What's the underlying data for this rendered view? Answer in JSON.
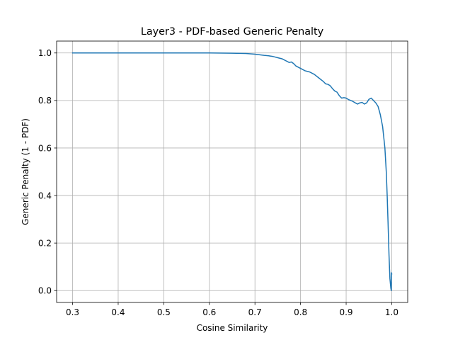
{
  "chart_data": {
    "type": "line",
    "title": "Layer3 - PDF-based Generic Penalty",
    "xlabel": "Cosine Similarity",
    "ylabel": "Generic Penalty (1 - PDF)",
    "xlim": [
      0.265,
      1.035
    ],
    "ylim": [
      -0.05,
      1.05
    ],
    "xticks": [
      0.3,
      0.4,
      0.5,
      0.6,
      0.7,
      0.8,
      0.9,
      1.0
    ],
    "xtick_labels": [
      "0.3",
      "0.4",
      "0.5",
      "0.6",
      "0.7",
      "0.8",
      "0.9",
      "1.0"
    ],
    "yticks": [
      0.0,
      0.2,
      0.4,
      0.6,
      0.8,
      1.0
    ],
    "ytick_labels": [
      "0.0",
      "0.2",
      "0.4",
      "0.6",
      "0.8",
      "1.0"
    ],
    "grid": true,
    "line_color": "#1f77b4",
    "series": [
      {
        "x": [
          0.3,
          0.4,
          0.5,
          0.6,
          0.65,
          0.68,
          0.7,
          0.72,
          0.73,
          0.74,
          0.75,
          0.76,
          0.77,
          0.775,
          0.78,
          0.785,
          0.79,
          0.8,
          0.81,
          0.82,
          0.83,
          0.84,
          0.85,
          0.855,
          0.86,
          0.865,
          0.87,
          0.875,
          0.88,
          0.885,
          0.89,
          0.895,
          0.9,
          0.905,
          0.91,
          0.915,
          0.92,
          0.925,
          0.93,
          0.935,
          0.94,
          0.945,
          0.95,
          0.955,
          0.96,
          0.965,
          0.97,
          0.975,
          0.98,
          0.985,
          0.988,
          0.99,
          0.992,
          0.994,
          0.996,
          0.998,
          0.999,
          0.9995,
          1.0
        ],
        "y": [
          1.0,
          1.0,
          1.0,
          1.0,
          0.999,
          0.998,
          0.995,
          0.99,
          0.988,
          0.985,
          0.98,
          0.975,
          0.965,
          0.96,
          0.962,
          0.955,
          0.945,
          0.935,
          0.925,
          0.92,
          0.91,
          0.895,
          0.88,
          0.87,
          0.868,
          0.862,
          0.85,
          0.84,
          0.835,
          0.82,
          0.81,
          0.812,
          0.81,
          0.804,
          0.8,
          0.796,
          0.79,
          0.785,
          0.79,
          0.792,
          0.785,
          0.79,
          0.805,
          0.81,
          0.8,
          0.79,
          0.775,
          0.74,
          0.69,
          0.6,
          0.5,
          0.4,
          0.28,
          0.15,
          0.05,
          0.01,
          0.0,
          0.075,
          0.07
        ]
      }
    ]
  }
}
